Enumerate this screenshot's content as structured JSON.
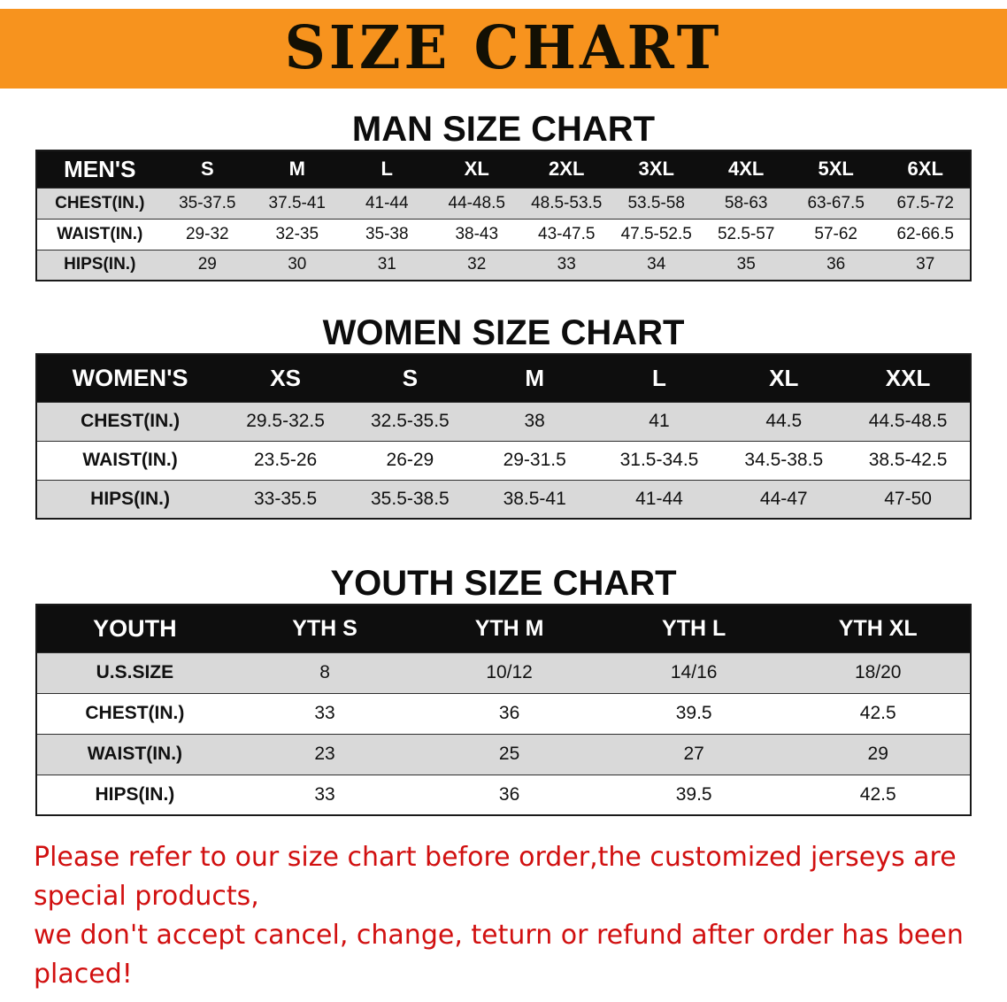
{
  "banner": {
    "title": "SIZE CHART"
  },
  "colors": {
    "banner_bg": "#F7931E",
    "banner_text": "#131004",
    "table_header_bg": "#0E0E0E",
    "table_header_text": "#FFFFFF",
    "row_stripe": "#D9D9D9",
    "footer_text": "#D11010"
  },
  "chart_data": [
    {
      "type": "table",
      "title": "MAN SIZE CHART",
      "header": [
        "MEN'S",
        "S",
        "M",
        "L",
        "XL",
        "2XL",
        "3XL",
        "4XL",
        "5XL",
        "6XL"
      ],
      "rows": [
        [
          "CHEST(IN.)",
          "35-37.5",
          "37.5-41",
          "41-44",
          "44-48.5",
          "48.5-53.5",
          "53.5-58",
          "58-63",
          "63-67.5",
          "67.5-72"
        ],
        [
          "WAIST(IN.)",
          "29-32",
          "32-35",
          "35-38",
          "38-43",
          "43-47.5",
          "47.5-52.5",
          "52.5-57",
          "57-62",
          "62-66.5"
        ],
        [
          "HIPS(IN.)",
          "29",
          "30",
          "31",
          "32",
          "33",
          "34",
          "35",
          "36",
          "37"
        ]
      ]
    },
    {
      "type": "table",
      "title": "WOMEN SIZE CHART",
      "header": [
        "WOMEN'S",
        "XS",
        "S",
        "M",
        "L",
        "XL",
        "XXL"
      ],
      "rows": [
        [
          "CHEST(IN.)",
          "29.5-32.5",
          "32.5-35.5",
          "38",
          "41",
          "44.5",
          "44.5-48.5"
        ],
        [
          "WAIST(IN.)",
          "23.5-26",
          "26-29",
          "29-31.5",
          "31.5-34.5",
          "34.5-38.5",
          "38.5-42.5"
        ],
        [
          "HIPS(IN.)",
          "33-35.5",
          "35.5-38.5",
          "38.5-41",
          "41-44",
          "44-47",
          "47-50"
        ]
      ]
    },
    {
      "type": "table",
      "title": "YOUTH SIZE CHART",
      "header": [
        "YOUTH",
        "YTH S",
        "YTH M",
        "YTH L",
        "YTH XL"
      ],
      "rows": [
        [
          "U.S.SIZE",
          "8",
          "10/12",
          "14/16",
          "18/20"
        ],
        [
          "CHEST(IN.)",
          "33",
          "36",
          "39.5",
          "42.5"
        ],
        [
          "WAIST(IN.)",
          "23",
          "25",
          "27",
          "29"
        ],
        [
          "HIPS(IN.)",
          "33",
          "36",
          "39.5",
          "42.5"
        ]
      ]
    }
  ],
  "footer": {
    "line1": "Please refer to our size chart before order,the customized jerseys are special products,",
    "line2": "we don't accept cancel, change, teturn or refund after order has been placed!"
  }
}
